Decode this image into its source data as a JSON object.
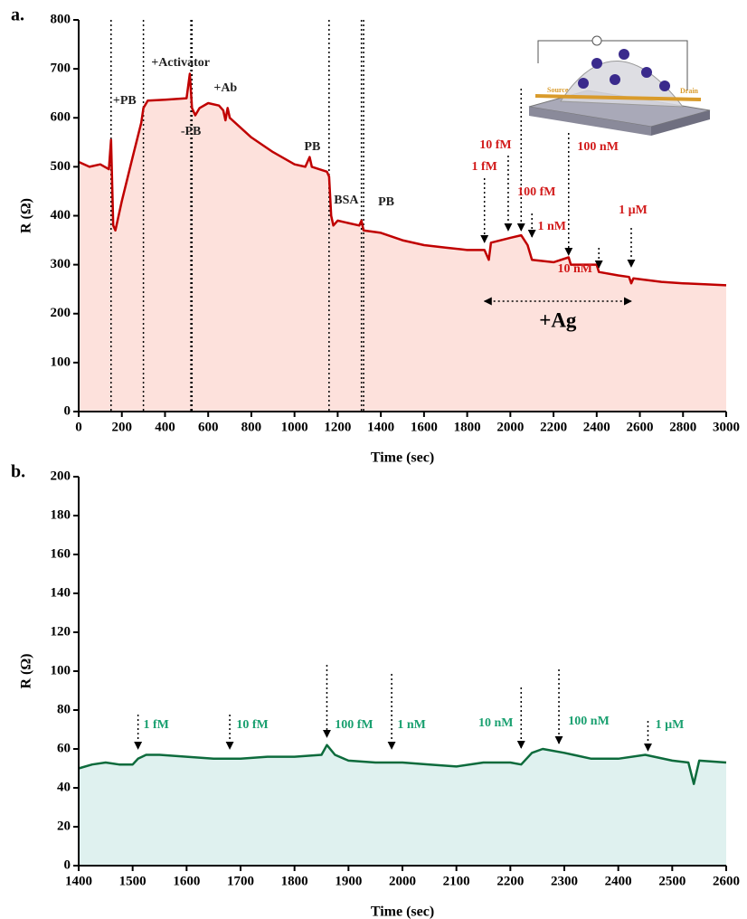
{
  "chart_data": [
    {
      "type": "line",
      "panel_label": "a.",
      "xlabel": "Time (sec)",
      "ylabel": "R (Ω)",
      "xlim": [
        0,
        3000
      ],
      "xticks": [
        0,
        200,
        400,
        600,
        800,
        1000,
        1200,
        1400,
        1600,
        1800,
        2000,
        2200,
        2400,
        2600,
        2800,
        3000
      ],
      "ylim": [
        0,
        800
      ],
      "yticks": [
        0,
        100,
        200,
        300,
        400,
        500,
        600,
        700,
        800
      ],
      "color": "#c00000",
      "fill": "#fde1dc",
      "label_color": "#222222",
      "arrow_color": "#d21b1b",
      "x": [
        0,
        50,
        100,
        140,
        150,
        160,
        170,
        200,
        250,
        290,
        300,
        320,
        400,
        500,
        515,
        525,
        540,
        560,
        600,
        650,
        670,
        680,
        690,
        700,
        800,
        900,
        1000,
        1050,
        1070,
        1080,
        1150,
        1160,
        1170,
        1180,
        1200,
        1250,
        1300,
        1310,
        1320,
        1400,
        1500,
        1600,
        1700,
        1800,
        1880,
        1900,
        1910,
        2000,
        2050,
        2080,
        2100,
        2200,
        2270,
        2280,
        2400,
        2410,
        2500,
        2550,
        2560,
        2570,
        2700,
        2800,
        2900,
        3000
      ],
      "values": [
        510,
        500,
        505,
        495,
        555,
        380,
        370,
        430,
        520,
        590,
        620,
        635,
        637,
        640,
        690,
        620,
        605,
        620,
        630,
        625,
        615,
        595,
        620,
        600,
        560,
        530,
        505,
        500,
        520,
        500,
        490,
        480,
        400,
        380,
        390,
        385,
        380,
        390,
        370,
        365,
        350,
        340,
        335,
        330,
        330,
        310,
        345,
        355,
        360,
        340,
        310,
        305,
        315,
        300,
        300,
        285,
        278,
        275,
        262,
        272,
        265,
        262,
        260,
        258
      ],
      "event_lines": [
        150,
        300,
        520,
        525,
        1160,
        1310,
        1320
      ],
      "labels": [
        {
          "text": "+PB",
          "x": 150
        },
        {
          "text": "+Activator",
          "x": 300
        },
        {
          "text": "-PB",
          "x": 520
        },
        {
          "text": "+Ab",
          "x": 680
        },
        {
          "text": "PB",
          "x": 1070
        },
        {
          "text": "BSA",
          "x": 1160
        },
        {
          "text": "PB",
          "x": 1320
        }
      ],
      "arrows": [
        {
          "text": "1 fM",
          "x": 1880
        },
        {
          "text": "10 fM",
          "x": 1990
        },
        {
          "text": "100 fM",
          "x": 2050
        },
        {
          "text": "1 nM",
          "x": 2100
        },
        {
          "text": "10 nM",
          "x": 2270
        },
        {
          "text": "100 nM",
          "x": 2410
        },
        {
          "text": "1 µM",
          "x": 2560
        }
      ],
      "span": {
        "text": "+Ag",
        "x": [
          1880,
          2560
        ]
      },
      "inset": {
        "labels": [
          "Source",
          "Drain"
        ]
      }
    },
    {
      "type": "line",
      "panel_label": "b.",
      "xlabel": "Time (sec)",
      "ylabel": "R (Ω)",
      "xlim": [
        1400,
        2600
      ],
      "xticks": [
        1400,
        1500,
        1600,
        1700,
        1800,
        1900,
        2000,
        2100,
        2200,
        2300,
        2400,
        2500,
        2600
      ],
      "ylim": [
        0,
        200
      ],
      "yticks": [
        0,
        20,
        40,
        60,
        80,
        100,
        120,
        140,
        160,
        180,
        200
      ],
      "color": "#0d6b3c",
      "fill": "#dff1ef",
      "arrow_color": "#1aa070",
      "x": [
        1400,
        1425,
        1450,
        1475,
        1500,
        1510,
        1525,
        1550,
        1600,
        1650,
        1700,
        1750,
        1800,
        1850,
        1860,
        1875,
        1900,
        1950,
        2000,
        2050,
        2100,
        2150,
        2200,
        2220,
        2240,
        2260,
        2300,
        2350,
        2400,
        2450,
        2500,
        2530,
        2540,
        2550,
        2600
      ],
      "values": [
        50,
        52,
        53,
        52,
        52,
        55,
        57,
        57,
        56,
        55,
        55,
        56,
        56,
        57,
        62,
        57,
        54,
        53,
        53,
        52,
        51,
        53,
        53,
        52,
        58,
        60,
        58,
        55,
        55,
        57,
        54,
        53,
        42,
        54,
        53
      ],
      "arrows": [
        {
          "text": "1 fM",
          "x": 1510
        },
        {
          "text": "10 fM",
          "x": 1680
        },
        {
          "text": "100 fM",
          "x": 1860
        },
        {
          "text": "1 nM",
          "x": 1980
        },
        {
          "text": "10 nM",
          "x": 2220
        },
        {
          "text": "100 nM",
          "x": 2290
        },
        {
          "text": "1 µM",
          "x": 2455
        }
      ]
    }
  ]
}
